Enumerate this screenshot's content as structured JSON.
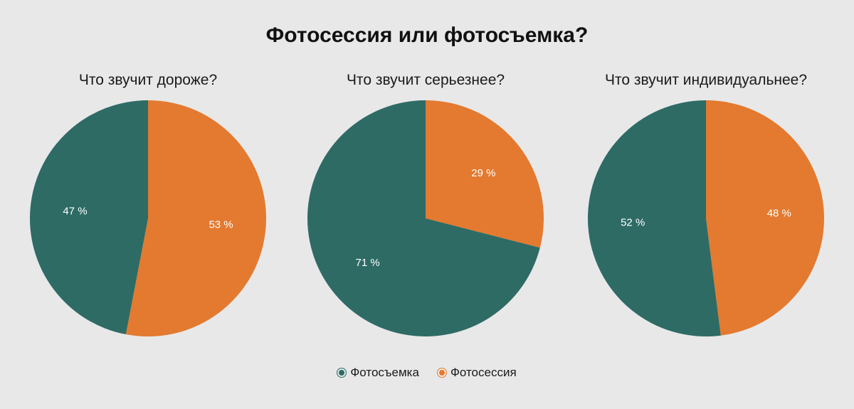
{
  "title": "Фотосессия или фотосъемка?",
  "colors": {
    "Фотосъемка": "#2e6b65",
    "Фотосессия": "#e37a2f",
    "background": "#e8e8e8"
  },
  "legend": [
    {
      "name": "Фотосъемка",
      "color": "#2e6b65"
    },
    {
      "name": "Фотосессия",
      "color": "#e37a2f"
    }
  ],
  "legend_position": "bottom-center",
  "chart_data": [
    {
      "type": "pie",
      "title": "Что звучит дороже?",
      "categories": [
        "Фотосессия",
        "Фотосъемка"
      ],
      "values": [
        53,
        47
      ],
      "labels": [
        "53 %",
        "47 %"
      ]
    },
    {
      "type": "pie",
      "title": "Что звучит серьезнее?",
      "categories": [
        "Фотосессия",
        "Фотосъемка"
      ],
      "values": [
        29,
        71
      ],
      "labels": [
        "29 %",
        "71 %"
      ]
    },
    {
      "type": "pie",
      "title": "Что звучит индивидуальнее?",
      "categories": [
        "Фотосессия",
        "Фотосъемка"
      ],
      "values": [
        48,
        52
      ],
      "labels": [
        "48 %",
        "52 %"
      ]
    }
  ]
}
